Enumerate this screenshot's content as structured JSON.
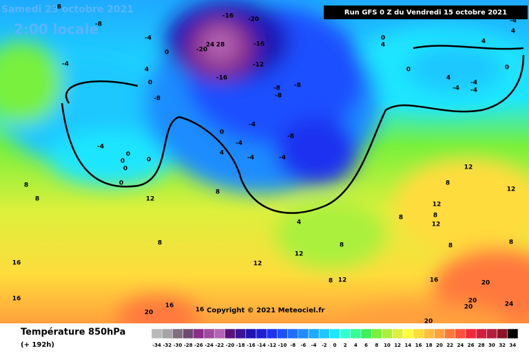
{
  "header": {
    "date": "Samedi 23 octobre 2021",
    "time": "2:00 locale",
    "run": "Run GFS 0 Z du Vendredi 15 octobre 2021"
  },
  "map": {
    "labels": [
      -8,
      -8,
      -4,
      0,
      -4,
      4,
      0,
      -8,
      -16,
      -20,
      -20,
      24,
      28,
      -16,
      -12,
      -16,
      -8,
      -8,
      -8,
      0,
      -4,
      -4,
      -8,
      -4,
      -4,
      -4,
      0,
      0,
      0,
      0,
      0,
      4,
      8,
      12,
      8,
      8,
      16,
      16,
      8,
      12,
      12,
      8,
      8,
      12,
      16,
      20,
      16,
      16,
      20,
      20,
      20,
      24,
      20,
      4,
      12,
      8,
      12,
      8,
      12,
      8,
      8,
      12,
      8,
      0,
      4,
      -4,
      -4,
      -4,
      0,
      4,
      -4,
      0,
      4,
      4
    ]
  },
  "copyright": "Copyright © 2021 Meteociel.fr",
  "legend": {
    "title": "Température 850hPa",
    "subtitle": "(+ 192h)",
    "ticks": [
      -34,
      -32,
      -30,
      -28,
      -26,
      -24,
      -22,
      -20,
      -18,
      -16,
      -14,
      -12,
      -10,
      -8,
      -6,
      -4,
      -2,
      0,
      2,
      4,
      6,
      8,
      10,
      12,
      14,
      16,
      18,
      20,
      22,
      24,
      26,
      28,
      30,
      32,
      34
    ],
    "colors": [
      "#b9b9b9",
      "#a5a5a5",
      "#7f6f7f",
      "#6e4a6e",
      "#8a2e8a",
      "#a04aa0",
      "#b464b4",
      "#5a1478",
      "#3c1496",
      "#1e14b4",
      "#1e1ed2",
      "#1e32f0",
      "#1e50ff",
      "#1e6eff",
      "#1e8cff",
      "#1eaaff",
      "#1ec8ff",
      "#1ee6ff",
      "#32ffd2",
      "#32ff96",
      "#3cf05a",
      "#78f03c",
      "#aaf03c",
      "#dcf03c",
      "#ffff3c",
      "#ffdc3c",
      "#ffbe3c",
      "#ffa03c",
      "#ff783c",
      "#ff503c",
      "#f0283c",
      "#d21e3c",
      "#b41e3c",
      "#8c1428",
      "#000000"
    ]
  }
}
